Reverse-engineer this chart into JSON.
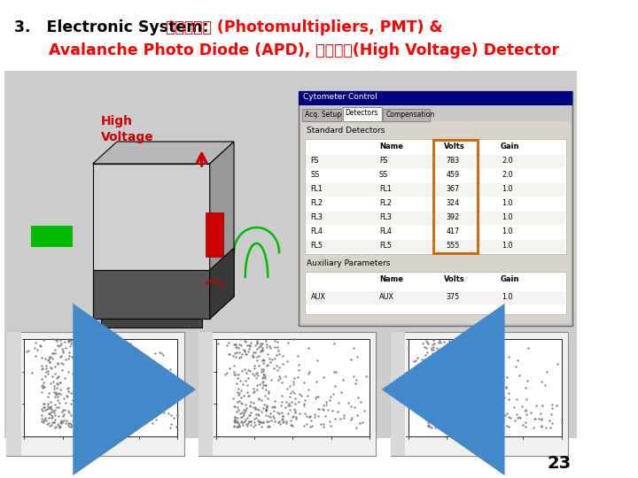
{
  "slide_bg": "#ffffff",
  "content_bg": "#cccccc",
  "title_black": "3.   Electronic System:",
  "title_red1": "光電倍增管 (Photomultipliers, PMT) &",
  "title_red2": "Avalanche Photo Diode (APD), 放大訊號(High Voltage) Detector",
  "hv_label_color": "#cc0000",
  "arrow_color": "#cc0000",
  "green_color": "#00bb00",
  "red_rect_color": "#cc0000",
  "dark_gray": "#404040",
  "box_gray": "#d0d0d0",
  "box_top_gray": "#b8b8b8",
  "box_right_gray": "#989898",
  "volts_box_color": "#cc6600",
  "blue_arrow_color": "#4488cc",
  "page_num": "23",
  "scatter_dot_color": "#888888",
  "win_bg": "#c8c8c8",
  "win_title_bg": "#000080",
  "table_bg": "#e0ddd8",
  "table_line": "#aaaaaa"
}
